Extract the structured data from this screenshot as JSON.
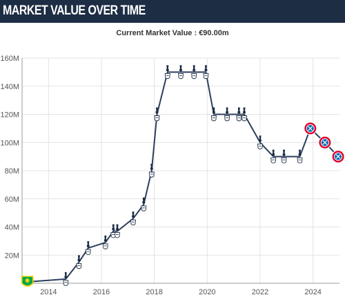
{
  "header": {
    "title": "MARKET VALUE OVER TIME"
  },
  "subtitle": "Current Market Value : €90.00m",
  "colors": {
    "line": "#2c3e5c",
    "grid": "#e3e3e3",
    "axis": "#999999",
    "header_bg": "#1d2d44",
    "spurs_crest": "#1d2d44",
    "bayern_crest": "#dc052d",
    "norwich_crest": "#00a650"
  },
  "chart_data": {
    "type": "line",
    "title": "",
    "xlabel": "",
    "ylabel": "",
    "xlim": [
      2013.0,
      2025.0
    ],
    "ylim": [
      0,
      160
    ],
    "y_unit": "€m",
    "y_ticks": [
      "20M",
      "40M",
      "60M",
      "80M",
      "100M",
      "120M",
      "140M",
      "160M"
    ],
    "x_ticks": [
      "2014",
      "2016",
      "2018",
      "2020",
      "2022",
      "2024"
    ],
    "grid": true,
    "series": [
      {
        "x": [
          2013.2,
          2014.65,
          2015.15,
          2015.5,
          2016.15,
          2016.45,
          2016.6,
          2017.2,
          2017.6,
          2017.9,
          2018.1,
          2018.5,
          2019.0,
          2019.5,
          2019.95,
          2020.25,
          2020.75,
          2021.2,
          2021.4,
          2022.0,
          2022.5,
          2022.9,
          2023.5,
          2023.9,
          2024.45,
          2024.95
        ],
        "values": [
          1,
          3,
          15,
          25,
          29,
          37,
          37,
          46,
          56,
          80,
          120,
          150,
          150,
          150,
          150,
          120,
          120,
          120,
          120,
          100,
          90,
          90,
          90,
          110,
          100,
          90
        ],
        "clubs": [
          "Norwich City",
          "Tottenham",
          "Tottenham",
          "Tottenham",
          "Tottenham",
          "Tottenham",
          "Tottenham",
          "Tottenham",
          "Tottenham",
          "Tottenham",
          "Tottenham",
          "Tottenham",
          "Tottenham",
          "Tottenham",
          "Tottenham",
          "Tottenham",
          "Tottenham",
          "Tottenham",
          "Tottenham",
          "Tottenham",
          "Tottenham",
          "Tottenham",
          "Tottenham",
          "Bayern Munich",
          "Bayern Munich",
          "Bayern Munich"
        ]
      }
    ]
  }
}
